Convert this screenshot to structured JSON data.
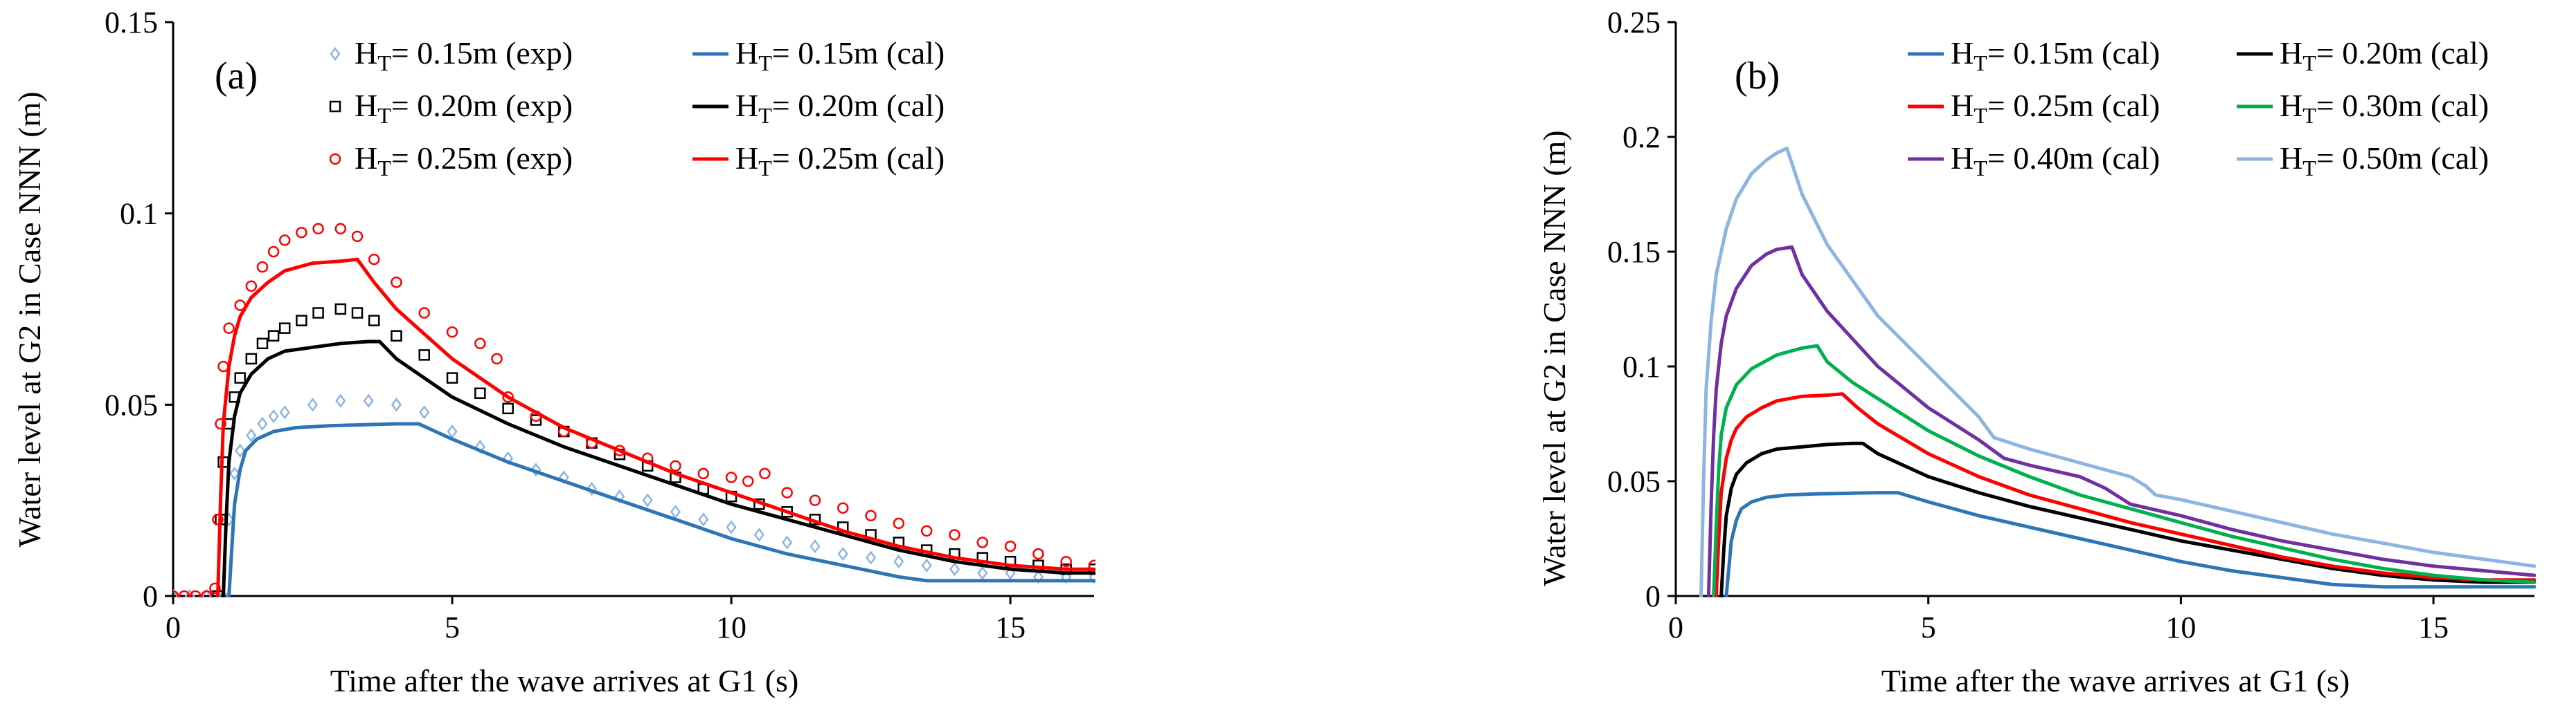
{
  "chart_data": [
    {
      "type": "line",
      "panel_label": "(a)",
      "xlabel": "Time after the wave arrives at G1 (s)",
      "ylabel": "Water level at G2 in Case NNN (m)",
      "xlim": [
        0,
        16.5
      ],
      "ylim": [
        0,
        0.15
      ],
      "xticks": [
        0,
        5,
        10,
        15
      ],
      "xtick_labels": [
        "0",
        "5",
        "10",
        "15"
      ],
      "yticks": [
        0,
        0.05,
        0.1,
        0.15
      ],
      "ytick_labels": [
        "0",
        "0.05",
        "0.1",
        "0.15"
      ],
      "grid": false,
      "legend_position": "top",
      "series": [
        {
          "legend_main": "H",
          "legend_sub": "T",
          "legend_rest": "= 0.15m (exp)",
          "kind": "scatter",
          "marker": "diamond",
          "color": "#8db4e2",
          "x": [
            0,
            0.3,
            0.6,
            0.9,
            1.0,
            1.1,
            1.2,
            1.4,
            1.6,
            1.8,
            2.0,
            2.5,
            3.0,
            3.5,
            4.0,
            4.5,
            5.0,
            5.5,
            6.0,
            6.5,
            7.0,
            7.5,
            8.0,
            8.5,
            9.0,
            9.5,
            10.0,
            10.5,
            11.0,
            11.5,
            12.0,
            12.5,
            13.0,
            13.5,
            14.0,
            14.5,
            15.0,
            15.5,
            16.0,
            16.5
          ],
          "y": [
            0,
            0,
            0,
            0,
            0.02,
            0.032,
            0.038,
            0.042,
            0.045,
            0.047,
            0.048,
            0.05,
            0.051,
            0.051,
            0.05,
            0.048,
            0.043,
            0.039,
            0.036,
            0.033,
            0.031,
            0.028,
            0.026,
            0.025,
            0.022,
            0.02,
            0.018,
            0.016,
            0.014,
            0.013,
            0.011,
            0.01,
            0.009,
            0.008,
            0.007,
            0.006,
            0.006,
            0.005,
            0.005,
            0.005
          ]
        },
        {
          "legend_main": "H",
          "legend_sub": "T",
          "legend_rest": "= 0.20m (exp)",
          "kind": "scatter",
          "marker": "square",
          "color": "#000000",
          "x": [
            0.8,
            0.85,
            0.9,
            1.0,
            1.1,
            1.2,
            1.4,
            1.6,
            1.8,
            2.0,
            2.3,
            2.6,
            3.0,
            3.3,
            3.6,
            4.0,
            4.5,
            5.0,
            5.5,
            6.0,
            6.5,
            7.0,
            7.5,
            8.0,
            8.5,
            9.0,
            9.5,
            10.0,
            10.5,
            11.0,
            11.5,
            12.0,
            12.5,
            13.0,
            13.5,
            14.0,
            14.5,
            15.0,
            15.5,
            16.0,
            16.5
          ],
          "y": [
            0,
            0.02,
            0.035,
            0.045,
            0.052,
            0.057,
            0.062,
            0.066,
            0.068,
            0.07,
            0.072,
            0.074,
            0.075,
            0.074,
            0.072,
            0.068,
            0.063,
            0.057,
            0.053,
            0.049,
            0.046,
            0.043,
            0.04,
            0.037,
            0.034,
            0.031,
            0.028,
            0.026,
            0.024,
            0.022,
            0.02,
            0.018,
            0.016,
            0.014,
            0.012,
            0.011,
            0.01,
            0.009,
            0.008,
            0.007,
            0.007
          ]
        },
        {
          "legend_main": "H",
          "legend_sub": "T",
          "legend_rest": "= 0.25m (exp)",
          "kind": "scatter",
          "marker": "circle",
          "color": "#ff0000",
          "x": [
            0,
            0.2,
            0.4,
            0.6,
            0.75,
            0.8,
            0.85,
            0.9,
            1.0,
            1.2,
            1.4,
            1.6,
            1.8,
            2.0,
            2.3,
            2.6,
            3.0,
            3.3,
            3.6,
            4.0,
            4.5,
            5.0,
            5.5,
            5.8,
            6.0,
            6.5,
            7.0,
            7.5,
            8.0,
            8.5,
            9.0,
            9.5,
            10.0,
            10.3,
            10.6,
            11.0,
            11.5,
            12.0,
            12.5,
            13.0,
            13.5,
            14.0,
            14.5,
            15.0,
            15.5,
            16.0,
            16.5
          ],
          "y": [
            0,
            0,
            0,
            0,
            0.002,
            0.02,
            0.045,
            0.06,
            0.07,
            0.076,
            0.081,
            0.086,
            0.09,
            0.093,
            0.095,
            0.096,
            0.096,
            0.094,
            0.088,
            0.082,
            0.074,
            0.069,
            0.066,
            0.062,
            0.052,
            0.047,
            0.043,
            0.04,
            0.038,
            0.036,
            0.034,
            0.032,
            0.031,
            0.03,
            0.032,
            0.027,
            0.025,
            0.023,
            0.021,
            0.019,
            0.017,
            0.016,
            0.014,
            0.013,
            0.011,
            0.009,
            0.008
          ]
        },
        {
          "legend_main": "H",
          "legend_sub": "T",
          "legend_rest": "= 0.15m (cal)",
          "kind": "line",
          "color": "#2e75b6",
          "x": [
            1.0,
            1.05,
            1.1,
            1.2,
            1.3,
            1.5,
            1.8,
            2.2,
            2.8,
            3.5,
            4.0,
            4.4,
            5.0,
            6.0,
            7.0,
            8.0,
            9.0,
            10.0,
            11.0,
            12.0,
            13.0,
            13.5,
            14.0,
            15.0,
            16.0,
            16.5
          ],
          "y": [
            0,
            0.012,
            0.024,
            0.033,
            0.038,
            0.041,
            0.043,
            0.044,
            0.0445,
            0.0448,
            0.045,
            0.045,
            0.041,
            0.035,
            0.03,
            0.025,
            0.02,
            0.015,
            0.011,
            0.008,
            0.005,
            0.004,
            0.004,
            0.004,
            0.004,
            0.004
          ]
        },
        {
          "legend_main": "H",
          "legend_sub": "T",
          "legend_rest": "= 0.20m (cal)",
          "kind": "line",
          "color": "#000000",
          "x": [
            0.9,
            0.95,
            1.0,
            1.1,
            1.2,
            1.4,
            1.7,
            2.0,
            2.5,
            3.0,
            3.5,
            3.7,
            4.0,
            5.0,
            6.0,
            7.0,
            8.0,
            9.0,
            10.0,
            11.0,
            12.0,
            13.0,
            14.0,
            15.0,
            16.0,
            16.5
          ],
          "y": [
            0,
            0.02,
            0.035,
            0.047,
            0.053,
            0.058,
            0.062,
            0.064,
            0.065,
            0.066,
            0.0665,
            0.0665,
            0.062,
            0.052,
            0.045,
            0.039,
            0.034,
            0.029,
            0.024,
            0.02,
            0.016,
            0.012,
            0.009,
            0.007,
            0.006,
            0.006
          ]
        },
        {
          "legend_main": "H",
          "legend_sub": "T",
          "legend_rest": "= 0.25m (cal)",
          "kind": "line",
          "color": "#ff0000",
          "x": [
            0.8,
            0.85,
            0.9,
            1.0,
            1.1,
            1.2,
            1.4,
            1.7,
            2.0,
            2.5,
            3.0,
            3.3,
            3.6,
            4.0,
            5.0,
            6.0,
            7.0,
            8.0,
            9.0,
            10.0,
            11.0,
            12.0,
            13.0,
            14.0,
            15.0,
            16.0,
            16.5
          ],
          "y": [
            0,
            0.025,
            0.045,
            0.06,
            0.068,
            0.073,
            0.078,
            0.082,
            0.085,
            0.087,
            0.0875,
            0.088,
            0.082,
            0.075,
            0.062,
            0.052,
            0.044,
            0.038,
            0.032,
            0.027,
            0.022,
            0.017,
            0.013,
            0.01,
            0.008,
            0.007,
            0.007
          ]
        }
      ]
    },
    {
      "type": "line",
      "panel_label": "(b)",
      "xlabel": "Time after the wave arrives at G1 (s)",
      "ylabel": "Water level at G2 in Case NNN (m)",
      "xlim": [
        0,
        17
      ],
      "ylim": [
        0,
        0.25
      ],
      "xticks": [
        0,
        5,
        10,
        15
      ],
      "xtick_labels": [
        "0",
        "5",
        "10",
        "15"
      ],
      "yticks": [
        0,
        0.05,
        0.1,
        0.15,
        0.2,
        0.25
      ],
      "ytick_labels": [
        "0",
        "0.05",
        "0.1",
        "0.15",
        "0.2",
        "0.25"
      ],
      "grid": false,
      "legend_position": "top-right",
      "series": [
        {
          "legend_main": "H",
          "legend_sub": "T",
          "legend_rest": "= 0.15m (cal)",
          "kind": "line",
          "color": "#2e75b6",
          "x": [
            1.0,
            1.05,
            1.1,
            1.2,
            1.3,
            1.5,
            1.8,
            2.2,
            2.8,
            3.5,
            4.0,
            4.4,
            5.0,
            6.0,
            7.0,
            8.0,
            9.0,
            10.0,
            11.0,
            12.0,
            13.0,
            14.0,
            15.0,
            16.0,
            17.0
          ],
          "y": [
            0,
            0.012,
            0.024,
            0.033,
            0.038,
            0.041,
            0.043,
            0.044,
            0.0445,
            0.0448,
            0.045,
            0.045,
            0.041,
            0.035,
            0.03,
            0.025,
            0.02,
            0.015,
            0.011,
            0.008,
            0.005,
            0.004,
            0.004,
            0.004,
            0.004
          ]
        },
        {
          "legend_main": "H",
          "legend_sub": "T",
          "legend_rest": "= 0.20m (cal)",
          "kind": "line",
          "color": "#000000",
          "x": [
            0.9,
            0.95,
            1.0,
            1.1,
            1.2,
            1.4,
            1.7,
            2.0,
            2.5,
            3.0,
            3.5,
            3.7,
            4.0,
            5.0,
            6.0,
            7.0,
            8.0,
            9.0,
            10.0,
            11.0,
            12.0,
            13.0,
            14.0,
            15.0,
            16.0,
            17.0
          ],
          "y": [
            0,
            0.02,
            0.035,
            0.047,
            0.053,
            0.058,
            0.062,
            0.064,
            0.065,
            0.066,
            0.0665,
            0.0665,
            0.062,
            0.052,
            0.045,
            0.039,
            0.034,
            0.029,
            0.024,
            0.02,
            0.016,
            0.012,
            0.009,
            0.007,
            0.006,
            0.006
          ]
        },
        {
          "legend_main": "H",
          "legend_sub": "T",
          "legend_rest": "= 0.25m (cal)",
          "kind": "line",
          "color": "#ff0000",
          "x": [
            0.8,
            0.85,
            0.9,
            1.0,
            1.1,
            1.2,
            1.4,
            1.7,
            2.0,
            2.5,
            3.0,
            3.3,
            3.6,
            4.0,
            5.0,
            6.0,
            7.0,
            8.0,
            9.0,
            10.0,
            11.0,
            12.0,
            13.0,
            14.0,
            15.0,
            16.0,
            17.0
          ],
          "y": [
            0,
            0.025,
            0.045,
            0.06,
            0.068,
            0.073,
            0.078,
            0.082,
            0.085,
            0.087,
            0.0875,
            0.088,
            0.082,
            0.075,
            0.062,
            0.052,
            0.044,
            0.038,
            0.032,
            0.027,
            0.022,
            0.017,
            0.013,
            0.01,
            0.008,
            0.007,
            0.007
          ]
        },
        {
          "legend_main": "H",
          "legend_sub": "T",
          "legend_rest": "= 0.30m (cal)",
          "kind": "line",
          "color": "#00b050",
          "x": [
            0.75,
            0.8,
            0.85,
            0.9,
            1.0,
            1.2,
            1.5,
            2.0,
            2.5,
            2.8,
            3.0,
            3.5,
            4.0,
            5.0,
            6.0,
            7.0,
            8.0,
            9.0,
            10.0,
            11.0,
            12.0,
            13.0,
            14.0,
            15.0,
            16.0,
            17.0
          ],
          "y": [
            0,
            0.03,
            0.055,
            0.07,
            0.082,
            0.092,
            0.099,
            0.105,
            0.108,
            0.109,
            0.102,
            0.093,
            0.086,
            0.072,
            0.061,
            0.052,
            0.044,
            0.038,
            0.032,
            0.026,
            0.021,
            0.016,
            0.012,
            0.009,
            0.007,
            0.006
          ]
        },
        {
          "legend_main": "H",
          "legend_sub": "T",
          "legend_rest": "= 0.40m (cal)",
          "kind": "line",
          "color": "#7030a0",
          "x": [
            0.65,
            0.7,
            0.75,
            0.8,
            0.9,
            1.0,
            1.2,
            1.5,
            1.8,
            2.0,
            2.3,
            2.5,
            3.0,
            4.0,
            5.0,
            6.0,
            6.5,
            7.0,
            8.0,
            8.5,
            9.0,
            10.0,
            11.0,
            12.0,
            13.0,
            14.0,
            15.0,
            16.0,
            17.0
          ],
          "y": [
            0,
            0.04,
            0.07,
            0.09,
            0.11,
            0.122,
            0.134,
            0.144,
            0.149,
            0.151,
            0.152,
            0.14,
            0.124,
            0.1,
            0.082,
            0.068,
            0.06,
            0.057,
            0.052,
            0.047,
            0.04,
            0.035,
            0.029,
            0.024,
            0.02,
            0.016,
            0.013,
            0.011,
            0.009
          ]
        },
        {
          "legend_main": "H",
          "legend_sub": "T",
          "legend_rest": "= 0.50m (cal)",
          "kind": "line",
          "color": "#8db4e2",
          "x": [
            0.5,
            0.55,
            0.6,
            0.7,
            0.8,
            1.0,
            1.2,
            1.5,
            1.8,
            2.0,
            2.2,
            2.5,
            3.0,
            4.0,
            5.0,
            6.0,
            6.3,
            7.0,
            8.0,
            9.0,
            9.3,
            9.5,
            10.0,
            11.0,
            12.0,
            13.0,
            14.0,
            15.0,
            16.0,
            17.0
          ],
          "y": [
            0,
            0.05,
            0.09,
            0.12,
            0.14,
            0.16,
            0.173,
            0.184,
            0.19,
            0.193,
            0.195,
            0.175,
            0.153,
            0.122,
            0.1,
            0.078,
            0.069,
            0.064,
            0.058,
            0.052,
            0.048,
            0.044,
            0.042,
            0.037,
            0.032,
            0.027,
            0.023,
            0.019,
            0.016,
            0.013
          ]
        }
      ]
    }
  ]
}
